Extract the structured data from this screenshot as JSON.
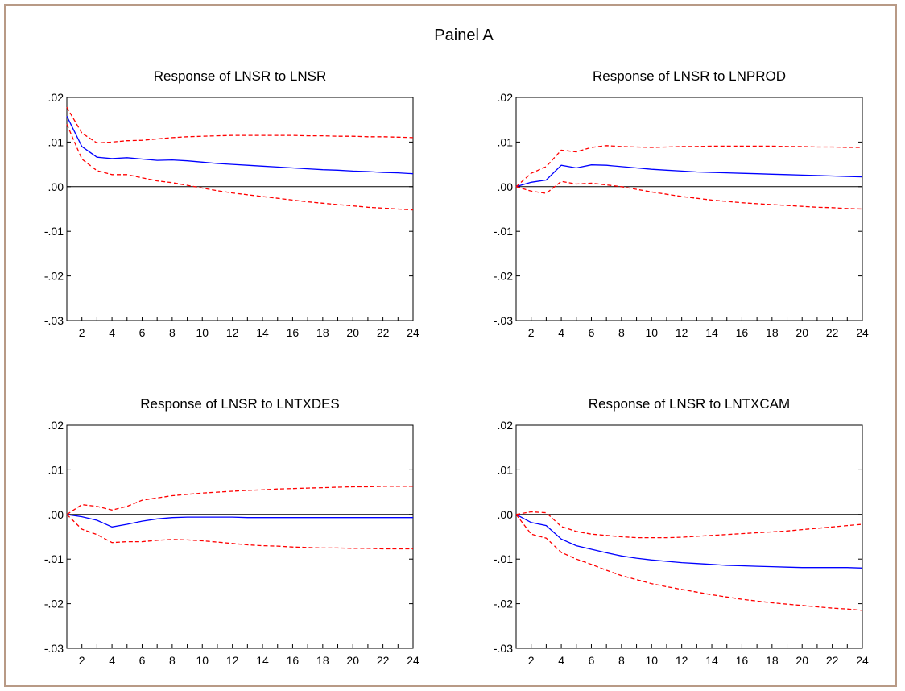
{
  "figure_title": "Painel A",
  "colors": {
    "response": "#0000ff",
    "bands": "#ff0000",
    "zero_line": "#000000",
    "frame": "#b89a86"
  },
  "chart_data": [
    {
      "type": "line",
      "title": "Response of LNSR to LNSR",
      "x": [
        1,
        2,
        3,
        4,
        5,
        6,
        7,
        8,
        9,
        10,
        11,
        12,
        13,
        14,
        15,
        16,
        17,
        18,
        19,
        20,
        21,
        22,
        23,
        24
      ],
      "x_tick_labels": [
        "2",
        "4",
        "6",
        "8",
        "10",
        "12",
        "14",
        "16",
        "18",
        "20",
        "22",
        "24"
      ],
      "y_tick_labels": [
        ".02",
        ".01",
        ".00",
        "-.01",
        "-.02",
        "-.03"
      ],
      "ylim": [
        -0.03,
        0.02
      ],
      "zero_line": true,
      "series": [
        {
          "role": "response",
          "style": "solid",
          "color": "#0000ff",
          "values": [
            0.0158,
            0.009,
            0.0066,
            0.0063,
            0.0065,
            0.0062,
            0.0059,
            0.006,
            0.0058,
            0.0055,
            0.0052,
            0.005,
            0.0048,
            0.0046,
            0.0044,
            0.0042,
            0.004,
            0.0038,
            0.0037,
            0.0035,
            0.0034,
            0.0032,
            0.0031,
            0.0029
          ]
        },
        {
          "role": "upper_band",
          "style": "dashed",
          "color": "#ff0000",
          "values": [
            0.0178,
            0.012,
            0.0098,
            0.01,
            0.0103,
            0.0104,
            0.0107,
            0.011,
            0.0112,
            0.0113,
            0.0114,
            0.0115,
            0.0115,
            0.0115,
            0.0115,
            0.0115,
            0.0114,
            0.0114,
            0.0113,
            0.0113,
            0.0112,
            0.0112,
            0.0111,
            0.011
          ]
        },
        {
          "role": "lower_band",
          "style": "dashed",
          "color": "#ff0000",
          "values": [
            0.014,
            0.0062,
            0.0036,
            0.0027,
            0.0027,
            0.002,
            0.0013,
            0.0009,
            0.0003,
            -0.0003,
            -0.0009,
            -0.0014,
            -0.0018,
            -0.0022,
            -0.0026,
            -0.003,
            -0.0034,
            -0.0037,
            -0.004,
            -0.0043,
            -0.0046,
            -0.0048,
            -0.005,
            -0.0052
          ]
        }
      ]
    },
    {
      "type": "line",
      "title": "Response of LNSR to LNPROD",
      "x": [
        1,
        2,
        3,
        4,
        5,
        6,
        7,
        8,
        9,
        10,
        11,
        12,
        13,
        14,
        15,
        16,
        17,
        18,
        19,
        20,
        21,
        22,
        23,
        24
      ],
      "x_tick_labels": [
        "2",
        "4",
        "6",
        "8",
        "10",
        "12",
        "14",
        "16",
        "18",
        "20",
        "22",
        "24"
      ],
      "y_tick_labels": [
        ".02",
        ".01",
        ".00",
        "-.01",
        "-.02",
        "-.03"
      ],
      "ylim": [
        -0.03,
        0.02
      ],
      "zero_line": true,
      "series": [
        {
          "role": "response",
          "style": "solid",
          "color": "#0000ff",
          "values": [
            0.0,
            0.001,
            0.0015,
            0.0048,
            0.0042,
            0.0049,
            0.0048,
            0.0045,
            0.0042,
            0.0039,
            0.0037,
            0.0035,
            0.0033,
            0.0032,
            0.0031,
            0.003,
            0.0029,
            0.0028,
            0.0027,
            0.0026,
            0.0025,
            0.0024,
            0.0023,
            0.0022
          ]
        },
        {
          "role": "upper_band",
          "style": "dashed",
          "color": "#ff0000",
          "values": [
            0.0,
            0.003,
            0.0045,
            0.0082,
            0.0078,
            0.0088,
            0.0092,
            0.009,
            0.0089,
            0.0088,
            0.0089,
            0.009,
            0.009,
            0.0091,
            0.0091,
            0.0091,
            0.0091,
            0.0091,
            0.009,
            0.009,
            0.0089,
            0.0089,
            0.0088,
            0.0088
          ]
        },
        {
          "role": "lower_band",
          "style": "dashed",
          "color": "#ff0000",
          "values": [
            0.0,
            -0.001,
            -0.0015,
            0.0012,
            0.0006,
            0.0008,
            0.0004,
            0.0,
            -0.0006,
            -0.0012,
            -0.0017,
            -0.0022,
            -0.0026,
            -0.003,
            -0.0033,
            -0.0036,
            -0.0038,
            -0.004,
            -0.0042,
            -0.0044,
            -0.0046,
            -0.0047,
            -0.0049,
            -0.005
          ]
        }
      ]
    },
    {
      "type": "line",
      "title": "Response of LNSR to LNTXDES",
      "x": [
        1,
        2,
        3,
        4,
        5,
        6,
        7,
        8,
        9,
        10,
        11,
        12,
        13,
        14,
        15,
        16,
        17,
        18,
        19,
        20,
        21,
        22,
        23,
        24
      ],
      "x_tick_labels": [
        "2",
        "4",
        "6",
        "8",
        "10",
        "12",
        "14",
        "16",
        "18",
        "20",
        "22",
        "24"
      ],
      "y_tick_labels": [
        ".02",
        ".01",
        ".00",
        "-.01",
        "-.02",
        "-.03"
      ],
      "ylim": [
        -0.03,
        0.02
      ],
      "zero_line": true,
      "series": [
        {
          "role": "response",
          "style": "solid",
          "color": "#0000ff",
          "values": [
            0.0,
            -0.0005,
            -0.0013,
            -0.0028,
            -0.0022,
            -0.0015,
            -0.001,
            -0.0007,
            -0.0006,
            -0.0006,
            -0.0006,
            -0.0006,
            -0.0007,
            -0.0007,
            -0.0007,
            -0.0007,
            -0.0007,
            -0.0007,
            -0.0007,
            -0.0007,
            -0.0007,
            -0.0007,
            -0.0007,
            -0.0007
          ]
        },
        {
          "role": "upper_band",
          "style": "dashed",
          "color": "#ff0000",
          "values": [
            0.0,
            0.0022,
            0.0018,
            0.001,
            0.0018,
            0.0032,
            0.0037,
            0.0042,
            0.0045,
            0.0048,
            0.005,
            0.0052,
            0.0054,
            0.0055,
            0.0057,
            0.0058,
            0.0059,
            0.006,
            0.0061,
            0.0062,
            0.0062,
            0.0063,
            0.0063,
            0.0063
          ]
        },
        {
          "role": "lower_band",
          "style": "dashed",
          "color": "#ff0000",
          "values": [
            0.0,
            -0.0033,
            -0.0045,
            -0.0063,
            -0.0061,
            -0.0061,
            -0.0058,
            -0.0056,
            -0.0057,
            -0.0059,
            -0.0062,
            -0.0065,
            -0.0068,
            -0.007,
            -0.0071,
            -0.0073,
            -0.0074,
            -0.0075,
            -0.0075,
            -0.0076,
            -0.0076,
            -0.0077,
            -0.0077,
            -0.0077
          ]
        }
      ]
    },
    {
      "type": "line",
      "title": "Response of LNSR to LNTXCAM",
      "x": [
        1,
        2,
        3,
        4,
        5,
        6,
        7,
        8,
        9,
        10,
        11,
        12,
        13,
        14,
        15,
        16,
        17,
        18,
        19,
        20,
        21,
        22,
        23,
        24
      ],
      "x_tick_labels": [
        "2",
        "4",
        "6",
        "8",
        "10",
        "12",
        "14",
        "16",
        "18",
        "20",
        "22",
        "24"
      ],
      "y_tick_labels": [
        ".02",
        ".01",
        ".00",
        "-.01",
        "-.02",
        "-.03"
      ],
      "ylim": [
        -0.03,
        0.02
      ],
      "zero_line": true,
      "series": [
        {
          "role": "response",
          "style": "solid",
          "color": "#0000ff",
          "values": [
            0.0,
            -0.0018,
            -0.0025,
            -0.0055,
            -0.007,
            -0.0078,
            -0.0086,
            -0.0093,
            -0.0098,
            -0.0102,
            -0.0105,
            -0.0108,
            -0.011,
            -0.0112,
            -0.0114,
            -0.0115,
            -0.0116,
            -0.0117,
            -0.0118,
            -0.0119,
            -0.0119,
            -0.0119,
            -0.0119,
            -0.012
          ]
        },
        {
          "role": "upper_band",
          "style": "dashed",
          "color": "#ff0000",
          "values": [
            0.0,
            0.0006,
            0.0004,
            -0.0027,
            -0.0038,
            -0.0044,
            -0.0047,
            -0.005,
            -0.0052,
            -0.0052,
            -0.0052,
            -0.0051,
            -0.0049,
            -0.0047,
            -0.0045,
            -0.0043,
            -0.0041,
            -0.0039,
            -0.0037,
            -0.0034,
            -0.0031,
            -0.0028,
            -0.0025,
            -0.0022
          ]
        },
        {
          "role": "lower_band",
          "style": "dashed",
          "color": "#ff0000",
          "values": [
            0.0,
            -0.0044,
            -0.0053,
            -0.0085,
            -0.01,
            -0.0112,
            -0.0125,
            -0.0137,
            -0.0146,
            -0.0155,
            -0.0162,
            -0.0168,
            -0.0174,
            -0.018,
            -0.0185,
            -0.019,
            -0.0194,
            -0.0198,
            -0.0201,
            -0.0204,
            -0.0207,
            -0.021,
            -0.0212,
            -0.0215
          ]
        }
      ]
    }
  ]
}
